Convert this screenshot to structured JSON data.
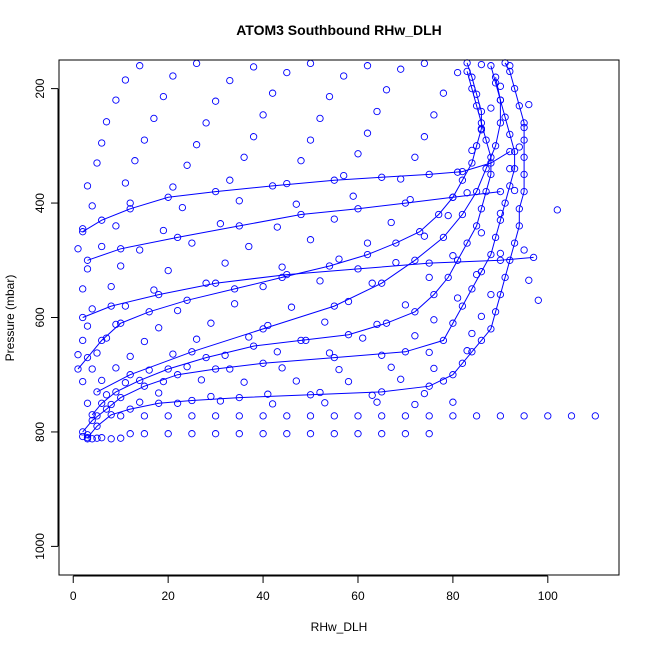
{
  "chart_data": {
    "type": "line",
    "title": "ATOM3 Southbound RHw_DLH",
    "xlabel": "RHw_DLH",
    "ylabel": "Pressure (mbar)",
    "xlim": [
      -3,
      115
    ],
    "ylim": [
      1050,
      150
    ],
    "y_reversed": true,
    "x_ticks": [
      0,
      20,
      40,
      60,
      80,
      100
    ],
    "y_ticks": [
      200,
      400,
      600,
      800,
      1000
    ],
    "grid": false,
    "legend": "none",
    "series_color": "#0000ff",
    "marker": "open-circle",
    "series": [
      {
        "values": [
          [
            3,
            810
          ],
          [
            5,
            790
          ],
          [
            8,
            770
          ],
          [
            12,
            760
          ],
          [
            18,
            750
          ],
          [
            25,
            745
          ],
          [
            35,
            740
          ],
          [
            50,
            735
          ],
          [
            65,
            730
          ],
          [
            75,
            720
          ],
          [
            80,
            700
          ],
          [
            82,
            680
          ],
          [
            84,
            660
          ],
          [
            86,
            640
          ],
          [
            88,
            620
          ],
          [
            89,
            590
          ],
          [
            90,
            560
          ],
          [
            91,
            530
          ],
          [
            92,
            500
          ],
          [
            93,
            470
          ],
          [
            94,
            440
          ],
          [
            94,
            410
          ],
          [
            95,
            380
          ],
          [
            95,
            350
          ],
          [
            95,
            320
          ],
          [
            95,
            290
          ],
          [
            95,
            260
          ],
          [
            94,
            230
          ],
          [
            93,
            200
          ],
          [
            92,
            170
          ],
          [
            91,
            155
          ]
        ]
      },
      {
        "values": [
          [
            2,
            800
          ],
          [
            4,
            780
          ],
          [
            7,
            760
          ],
          [
            10,
            740
          ],
          [
            15,
            720
          ],
          [
            22,
            700
          ],
          [
            30,
            690
          ],
          [
            40,
            680
          ],
          [
            55,
            670
          ],
          [
            70,
            660
          ],
          [
            78,
            640
          ],
          [
            80,
            610
          ],
          [
            82,
            580
          ],
          [
            84,
            550
          ],
          [
            86,
            520
          ],
          [
            88,
            490
          ],
          [
            89,
            460
          ],
          [
            90,
            430
          ],
          [
            91,
            400
          ],
          [
            92,
            370
          ],
          [
            93,
            340
          ],
          [
            93,
            310
          ],
          [
            92,
            280
          ],
          [
            91,
            250
          ],
          [
            90,
            220
          ],
          [
            89,
            190
          ],
          [
            88,
            160
          ]
        ]
      },
      {
        "values": [
          [
            4,
            770
          ],
          [
            6,
            750
          ],
          [
            9,
            730
          ],
          [
            14,
            710
          ],
          [
            20,
            690
          ],
          [
            28,
            670
          ],
          [
            38,
            650
          ],
          [
            48,
            640
          ],
          [
            58,
            630
          ],
          [
            66,
            610
          ],
          [
            72,
            590
          ],
          [
            76,
            560
          ],
          [
            79,
            530
          ],
          [
            81,
            500
          ],
          [
            83,
            470
          ],
          [
            85,
            440
          ],
          [
            86,
            410
          ],
          [
            87,
            380
          ],
          [
            88,
            350
          ],
          [
            88,
            320
          ],
          [
            87,
            290
          ],
          [
            86,
            260
          ],
          [
            85,
            230
          ],
          [
            84,
            200
          ],
          [
            83,
            170
          ]
        ]
      },
      {
        "values": [
          [
            1,
            690
          ],
          [
            3,
            670
          ],
          [
            6,
            640
          ],
          [
            10,
            610
          ],
          [
            16,
            590
          ],
          [
            24,
            570
          ],
          [
            34,
            550
          ],
          [
            44,
            530
          ],
          [
            54,
            510
          ],
          [
            62,
            490
          ],
          [
            68,
            470
          ],
          [
            73,
            450
          ],
          [
            77,
            420
          ],
          [
            80,
            390
          ],
          [
            82,
            360
          ],
          [
            84,
            330
          ],
          [
            85,
            300
          ],
          [
            86,
            270
          ],
          [
            86,
            240
          ],
          [
            85,
            210
          ],
          [
            84,
            180
          ],
          [
            83,
            155
          ]
        ]
      },
      {
        "values": [
          [
            5,
            730
          ],
          [
            12,
            700
          ],
          [
            25,
            660
          ],
          [
            40,
            620
          ],
          [
            55,
            580
          ],
          [
            65,
            540
          ],
          [
            72,
            500
          ],
          [
            78,
            460
          ],
          [
            82,
            420
          ],
          [
            85,
            380
          ],
          [
            87,
            340
          ],
          [
            89,
            300
          ],
          [
            90,
            260
          ],
          [
            90,
            220
          ],
          [
            89,
            180
          ]
        ]
      },
      {
        "values": [
          [
            2,
            450
          ],
          [
            6,
            430
          ],
          [
            12,
            410
          ],
          [
            20,
            390
          ],
          [
            30,
            380
          ],
          [
            42,
            370
          ],
          [
            55,
            360
          ],
          [
            65,
            355
          ],
          [
            75,
            350
          ],
          [
            82,
            345
          ],
          [
            88,
            330
          ],
          [
            92,
            310
          ]
        ]
      },
      {
        "values": [
          [
            3,
            500
          ],
          [
            10,
            480
          ],
          [
            22,
            460
          ],
          [
            35,
            440
          ],
          [
            48,
            420
          ],
          [
            60,
            410
          ],
          [
            70,
            400
          ],
          [
            80,
            390
          ],
          [
            90,
            380
          ]
        ]
      },
      {
        "values": [
          [
            2,
            600
          ],
          [
            8,
            580
          ],
          [
            18,
            560
          ],
          [
            30,
            540
          ],
          [
            45,
            525
          ],
          [
            60,
            515
          ],
          [
            75,
            505
          ],
          [
            90,
            500
          ],
          [
            97,
            495
          ]
        ]
      }
    ],
    "points": [
      [
        3,
        812
      ],
      [
        4,
        812
      ],
      [
        5,
        811
      ],
      [
        6,
        810
      ],
      [
        8,
        812
      ],
      [
        10,
        811
      ],
      [
        2,
        808
      ],
      [
        3,
        805
      ],
      [
        12,
        803
      ],
      [
        15,
        803
      ],
      [
        20,
        803
      ],
      [
        25,
        803
      ],
      [
        30,
        803
      ],
      [
        35,
        803
      ],
      [
        40,
        803
      ],
      [
        45,
        803
      ],
      [
        50,
        803
      ],
      [
        55,
        803
      ],
      [
        60,
        803
      ],
      [
        65,
        803
      ],
      [
        70,
        803
      ],
      [
        75,
        803
      ],
      [
        5,
        772
      ],
      [
        10,
        772
      ],
      [
        15,
        772
      ],
      [
        20,
        772
      ],
      [
        25,
        772
      ],
      [
        30,
        772
      ],
      [
        35,
        772
      ],
      [
        40,
        772
      ],
      [
        45,
        772
      ],
      [
        50,
        772
      ],
      [
        55,
        772
      ],
      [
        60,
        772
      ],
      [
        65,
        772
      ],
      [
        70,
        772
      ],
      [
        75,
        772
      ],
      [
        80,
        772
      ],
      [
        85,
        772
      ],
      [
        90,
        772
      ],
      [
        95,
        772
      ],
      [
        100,
        772
      ],
      [
        105,
        772
      ],
      [
        110,
        772
      ],
      [
        3,
        750
      ],
      [
        8,
        752
      ],
      [
        14,
        748
      ],
      [
        22,
        750
      ],
      [
        31,
        746
      ],
      [
        42,
        751
      ],
      [
        53,
        749
      ],
      [
        64,
        748
      ],
      [
        72,
        752
      ],
      [
        80,
        748
      ],
      [
        7,
        735
      ],
      [
        18,
        732
      ],
      [
        29,
        738
      ],
      [
        41,
        734
      ],
      [
        52,
        731
      ],
      [
        63,
        736
      ],
      [
        74,
        733
      ],
      [
        2,
        712
      ],
      [
        6,
        710
      ],
      [
        11,
        714
      ],
      [
        19,
        712
      ],
      [
        27,
        709
      ],
      [
        36,
        713
      ],
      [
        47,
        711
      ],
      [
        58,
        712
      ],
      [
        69,
        708
      ],
      [
        78,
        711
      ],
      [
        4,
        690
      ],
      [
        9,
        688
      ],
      [
        16,
        692
      ],
      [
        24,
        686
      ],
      [
        33,
        690
      ],
      [
        44,
        688
      ],
      [
        56,
        691
      ],
      [
        67,
        687
      ],
      [
        76,
        689
      ],
      [
        1,
        665
      ],
      [
        5,
        662
      ],
      [
        12,
        668
      ],
      [
        21,
        664
      ],
      [
        32,
        666
      ],
      [
        43,
        660
      ],
      [
        54,
        662
      ],
      [
        65,
        666
      ],
      [
        75,
        661
      ],
      [
        83,
        658
      ],
      [
        2,
        640
      ],
      [
        7,
        636
      ],
      [
        15,
        642
      ],
      [
        26,
        638
      ],
      [
        37,
        634
      ],
      [
        49,
        640
      ],
      [
        61,
        636
      ],
      [
        72,
        632
      ],
      [
        84,
        628
      ],
      [
        3,
        615
      ],
      [
        9,
        612
      ],
      [
        18,
        618
      ],
      [
        29,
        610
      ],
      [
        41,
        614
      ],
      [
        53,
        608
      ],
      [
        64,
        612
      ],
      [
        76,
        604
      ],
      [
        86,
        598
      ],
      [
        4,
        585
      ],
      [
        11,
        580
      ],
      [
        22,
        588
      ],
      [
        34,
        576
      ],
      [
        46,
        582
      ],
      [
        58,
        572
      ],
      [
        70,
        578
      ],
      [
        81,
        566
      ],
      [
        88,
        560
      ],
      [
        2,
        550
      ],
      [
        8,
        546
      ],
      [
        17,
        552
      ],
      [
        28,
        540
      ],
      [
        40,
        546
      ],
      [
        52,
        536
      ],
      [
        63,
        540
      ],
      [
        75,
        530
      ],
      [
        85,
        525
      ],
      [
        96,
        535
      ],
      [
        98,
        570
      ],
      [
        3,
        515
      ],
      [
        10,
        510
      ],
      [
        20,
        518
      ],
      [
        32,
        505
      ],
      [
        44,
        512
      ],
      [
        56,
        498
      ],
      [
        68,
        504
      ],
      [
        80,
        492
      ],
      [
        90,
        488
      ],
      [
        95,
        482
      ],
      [
        1,
        480
      ],
      [
        6,
        476
      ],
      [
        14,
        482
      ],
      [
        25,
        470
      ],
      [
        37,
        476
      ],
      [
        50,
        464
      ],
      [
        62,
        470
      ],
      [
        74,
        458
      ],
      [
        86,
        452
      ],
      [
        2,
        445
      ],
      [
        9,
        440
      ],
      [
        19,
        448
      ],
      [
        31,
        436
      ],
      [
        43,
        442
      ],
      [
        55,
        428
      ],
      [
        67,
        434
      ],
      [
        79,
        422
      ],
      [
        90,
        418
      ],
      [
        102,
        412
      ],
      [
        4,
        405
      ],
      [
        12,
        400
      ],
      [
        23,
        408
      ],
      [
        35,
        396
      ],
      [
        47,
        402
      ],
      [
        59,
        388
      ],
      [
        71,
        394
      ],
      [
        83,
        382
      ],
      [
        93,
        378
      ],
      [
        3,
        370
      ],
      [
        11,
        365
      ],
      [
        21,
        372
      ],
      [
        33,
        360
      ],
      [
        45,
        366
      ],
      [
        57,
        352
      ],
      [
        69,
        358
      ],
      [
        81,
        346
      ],
      [
        92,
        340
      ],
      [
        5,
        330
      ],
      [
        13,
        326
      ],
      [
        24,
        334
      ],
      [
        36,
        320
      ],
      [
        48,
        326
      ],
      [
        60,
        314
      ],
      [
        72,
        320
      ],
      [
        84,
        308
      ],
      [
        94,
        302
      ],
      [
        6,
        295
      ],
      [
        15,
        290
      ],
      [
        26,
        298
      ],
      [
        38,
        284
      ],
      [
        50,
        290
      ],
      [
        62,
        278
      ],
      [
        74,
        284
      ],
      [
        86,
        272
      ],
      [
        95,
        268
      ],
      [
        7,
        258
      ],
      [
        17,
        252
      ],
      [
        28,
        260
      ],
      [
        40,
        246
      ],
      [
        52,
        252
      ],
      [
        64,
        240
      ],
      [
        76,
        246
      ],
      [
        88,
        234
      ],
      [
        96,
        228
      ],
      [
        9,
        220
      ],
      [
        19,
        214
      ],
      [
        30,
        222
      ],
      [
        42,
        208
      ],
      [
        54,
        214
      ],
      [
        66,
        202
      ],
      [
        78,
        208
      ],
      [
        90,
        196
      ],
      [
        11,
        185
      ],
      [
        21,
        178
      ],
      [
        33,
        186
      ],
      [
        45,
        172
      ],
      [
        57,
        178
      ],
      [
        69,
        166
      ],
      [
        81,
        172
      ],
      [
        92,
        160
      ],
      [
        14,
        160
      ],
      [
        26,
        156
      ],
      [
        38,
        162
      ],
      [
        50,
        156
      ],
      [
        62,
        160
      ],
      [
        74,
        156
      ],
      [
        86,
        158
      ]
    ]
  }
}
